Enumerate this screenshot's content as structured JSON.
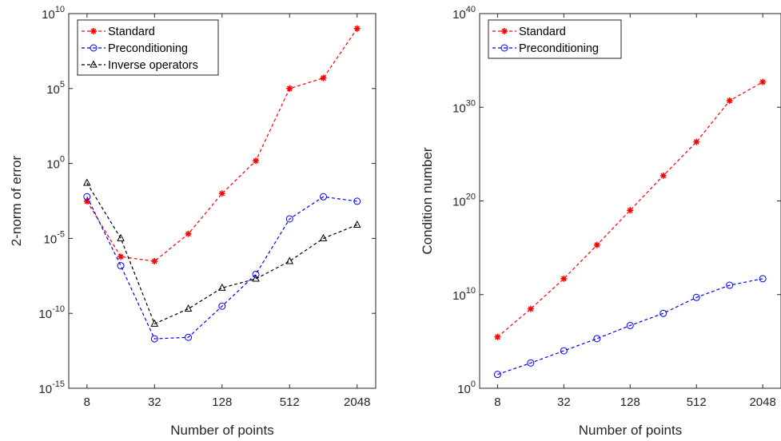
{
  "colors": {
    "standard": "#ff0000",
    "preconditioning": "#0000ff",
    "inverse": "#000000"
  },
  "chart_data": [
    {
      "type": "line",
      "scale": {
        "x": "log2",
        "y": "log10"
      },
      "xlabel": "Number of points",
      "ylabel": "2-norm of error",
      "x_ticks": [
        8,
        32,
        128,
        512,
        2048
      ],
      "x_tick_labels": [
        "8",
        "32",
        "128",
        "512",
        "2048"
      ],
      "y_ticks_exp": [
        -15,
        -10,
        -5,
        0,
        5,
        10
      ],
      "y_tick_base": "10",
      "xlim": [
        5.5,
        3000
      ],
      "ylim": [
        1e-15,
        10000000000.0
      ],
      "legend_position": "top-left",
      "x": [
        8,
        16,
        32,
        64,
        128,
        256,
        512,
        1024,
        2048
      ],
      "series": [
        {
          "name": "Standard",
          "marker": "asterisk",
          "color": "#ff0000",
          "values": [
            0.003,
            6e-07,
            3e-07,
            2e-05,
            0.01,
            1.5,
            100000.0,
            500000.0,
            1000000000.0
          ]
        },
        {
          "name": "Preconditioning",
          "marker": "circle",
          "color": "#0000ff",
          "values": [
            0.006,
            1.5e-07,
            2e-12,
            2.5e-12,
            3e-10,
            4e-08,
            0.0002,
            0.006,
            0.003
          ]
        },
        {
          "name": "Inverse operators",
          "marker": "triangle",
          "color": "#000000",
          "values": [
            0.05,
            1e-05,
            2e-11,
            2e-10,
            5e-09,
            2e-08,
            3e-07,
            1e-05,
            8e-05
          ]
        }
      ]
    },
    {
      "type": "line",
      "scale": {
        "x": "log2",
        "y": "log10"
      },
      "xlabel": "Number of points",
      "ylabel": "Condition number",
      "x_ticks": [
        8,
        32,
        128,
        512,
        2048
      ],
      "x_tick_labels": [
        "8",
        "32",
        "128",
        "512",
        "2048"
      ],
      "y_ticks_exp": [
        0,
        10,
        20,
        30,
        40
      ],
      "y_tick_base": "10",
      "xlim": [
        5.5,
        3000
      ],
      "ylim": [
        1,
        1e+40
      ],
      "legend_position": "top-left",
      "x": [
        8,
        16,
        32,
        64,
        128,
        256,
        512,
        1024,
        2048
      ],
      "series": [
        {
          "name": "Standard",
          "marker": "asterisk",
          "color": "#ff0000",
          "values": [
            300000.0,
            300000000.0,
            500000000000.0,
            2000000000000000.0,
            1e+19,
            5e+22,
            2e+26,
            5e+30,
            5e+32
          ]
        },
        {
          "name": "Preconditioning",
          "marker": "circle",
          "color": "#0000ff",
          "values": [
            30,
            500,
            10000.0,
            200000.0,
            5000000.0,
            100000000.0,
            5000000000.0,
            100000000000.0,
            500000000000.0
          ]
        }
      ]
    }
  ]
}
